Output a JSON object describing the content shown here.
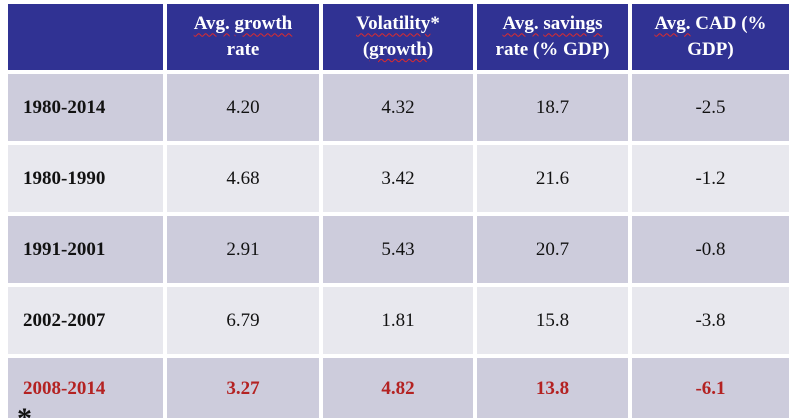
{
  "theme": {
    "header_bg": "#303293",
    "header_text": "#ffffff",
    "row_odd_bg": "#cdccdc",
    "row_even_bg": "#e8e8ee",
    "body_text": "#121212",
    "highlight_text": "#b42222",
    "squiggle": "#e02b2b",
    "gap": "#ffffff"
  },
  "table": {
    "columns": [
      {
        "name": "period",
        "label": "",
        "segments": []
      },
      {
        "name": "avg-growth-rate",
        "label": "Avg. growth rate",
        "segments": [
          {
            "text": "Avg.",
            "misspelled": true
          },
          {
            "text": " "
          },
          {
            "text": "growth",
            "misspelled": true
          },
          {
            "text": " rate"
          }
        ]
      },
      {
        "name": "volatility-growth",
        "label": "Volatility* (growth)",
        "segments": [
          {
            "text": "Volatility",
            "misspelled": true
          },
          {
            "text": "* ("
          },
          {
            "text": "growth",
            "misspelled": true
          },
          {
            "text": ")"
          }
        ]
      },
      {
        "name": "avg-savings-rate",
        "label": "Avg. savings rate (% GDP)",
        "segments": [
          {
            "text": "Avg.",
            "misspelled": true
          },
          {
            "text": " "
          },
          {
            "text": "savings",
            "misspelled": true
          },
          {
            "text": " rate (% GDP)"
          }
        ]
      },
      {
        "name": "avg-cad",
        "label": "Avg. CAD (% GDP)",
        "segments": [
          {
            "text": "Avg.",
            "misspelled": true
          },
          {
            "text": " CAD (% GDP)"
          }
        ]
      }
    ],
    "rows": [
      {
        "label": "1980-2014",
        "values": [
          "4.20",
          "4.32",
          "18.7",
          "-2.5"
        ],
        "highlight": false
      },
      {
        "label": "1980-1990",
        "values": [
          "4.68",
          "3.42",
          "21.6",
          "-1.2"
        ],
        "highlight": false
      },
      {
        "label": "1991-2001",
        "values": [
          "2.91",
          "5.43",
          "20.7",
          "-0.8"
        ],
        "highlight": false
      },
      {
        "label": "2002-2007",
        "values": [
          "6.79",
          "1.81",
          "15.8",
          "-3.8"
        ],
        "highlight": false
      },
      {
        "label": "2008-2014",
        "values": [
          "3.27",
          "4.82",
          "13.8",
          "-6.1"
        ],
        "highlight": true
      }
    ]
  },
  "footnote": {
    "marker": "*"
  }
}
